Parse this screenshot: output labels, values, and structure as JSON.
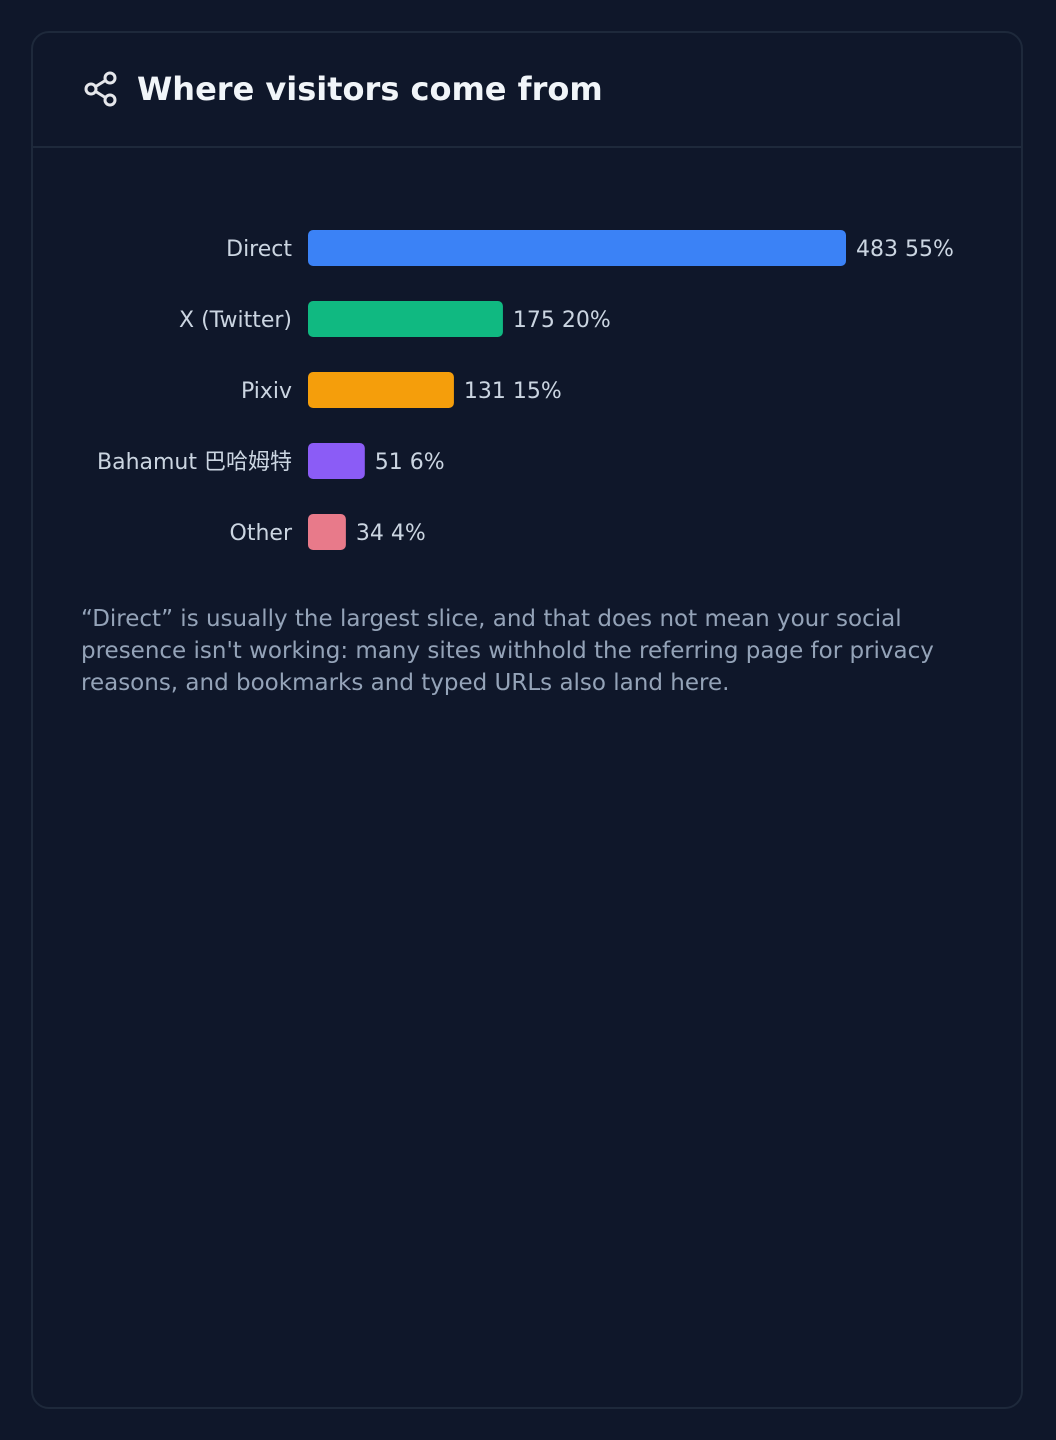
{
  "card": {
    "title": "Where visitors come from",
    "icon": "share-icon",
    "note": "“Direct” is usually the largest slice, and that does not mean your social presence isn't working: many sites withhold the referring page for privacy reasons, and bookmarks and typed URLs also land here."
  },
  "chart_data": {
    "type": "bar",
    "orientation": "horizontal",
    "title": "",
    "xlabel": "",
    "ylabel": "",
    "grid": false,
    "categories": [
      "Direct",
      "X (Twitter)",
      "Pixiv",
      "Bahamut 巴哈姆特",
      "Other"
    ],
    "values": [
      483,
      175,
      131,
      51,
      34
    ],
    "percent_labels": [
      "55%",
      "20%",
      "15%",
      "6%",
      "4%"
    ],
    "colors": [
      "#3b82f6",
      "#10b981",
      "#f59e0b",
      "#8b5cf6",
      "#e87a8a"
    ],
    "xlim": [
      0,
      483
    ]
  }
}
